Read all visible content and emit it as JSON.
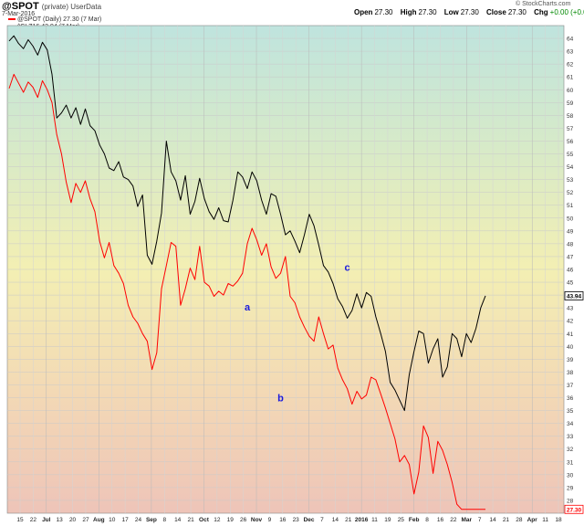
{
  "header": {
    "symbol": "@SPOT",
    "qualifier": "(private) UserData",
    "date": "7-Mar-2016",
    "open_label": "Open",
    "open": "27.30",
    "high_label": "High",
    "high": "27.30",
    "low_label": "Low",
    "low": "27.30",
    "close_label": "Close",
    "close": "27.30",
    "chg_label": "Chg",
    "chg": "+0.00 (+0.00%)",
    "brand": "© StockCharts.com"
  },
  "legend": {
    "primary": "@SPOT (Daily) 27.30 (7 Mar)",
    "secondary": "^CLZ16 43.94 (7 Mar)"
  },
  "chart_data": {
    "type": "line",
    "ylim": [
      27,
      65
    ],
    "y_ticks": [
      28,
      29,
      30,
      31,
      32,
      33,
      34,
      35,
      36,
      37,
      38,
      39,
      40,
      41,
      42,
      43,
      44,
      45,
      46,
      47,
      48,
      49,
      50,
      51,
      52,
      53,
      54,
      55,
      56,
      57,
      58,
      59,
      60,
      61,
      62,
      63,
      64
    ],
    "x_tick_labels": [
      "15",
      "22",
      "Jul",
      "13",
      "20",
      "27",
      "Aug",
      "10",
      "17",
      "24",
      "Sep",
      "8",
      "14",
      "21",
      "Oct",
      "12",
      "19",
      "26",
      "Nov",
      "9",
      "16",
      "23",
      "Dec",
      "7",
      "14",
      "21",
      "2016",
      "11",
      "19",
      "25",
      "Feb",
      "8",
      "16",
      "22",
      "Mar",
      "7",
      "14",
      "21",
      "28",
      "Apr",
      "11",
      "18"
    ],
    "x_tick_bold": [
      "Jul",
      "Aug",
      "Sep",
      "Oct",
      "Nov",
      "Dec",
      "2016",
      "Feb",
      "Mar",
      "Apr"
    ],
    "last_value_labels": {
      "primary": "27.30",
      "secondary": "43.94"
    },
    "annotations": [
      {
        "text": "a",
        "series": "secondary",
        "at_index": 50,
        "y": 42.8
      },
      {
        "text": "b",
        "series": "secondary",
        "at_index": 57,
        "y": 35.7
      },
      {
        "text": "c",
        "series": "secondary",
        "at_index": 71,
        "y": 45.9
      }
    ],
    "series": [
      {
        "name": "@SPOT",
        "color": "#ff0000",
        "values": [
          60.1,
          61.2,
          60.5,
          59.8,
          60.6,
          60.2,
          59.4,
          60.7,
          60.0,
          59.0,
          56.5,
          55.0,
          52.8,
          51.2,
          52.7,
          52.0,
          52.9,
          51.5,
          50.5,
          48.2,
          46.9,
          48.1,
          46.3,
          45.7,
          44.9,
          43.2,
          42.3,
          41.8,
          41.0,
          40.4,
          38.2,
          39.5,
          44.5,
          46.3,
          48.1,
          47.8,
          43.2,
          44.5,
          46.1,
          45.2,
          47.8,
          45.0,
          44.7,
          43.9,
          44.3,
          44.0,
          44.9,
          44.7,
          45.1,
          45.7,
          48.0,
          49.2,
          48.3,
          47.1,
          48.0,
          46.2,
          45.3,
          45.7,
          47.0,
          43.9,
          43.4,
          42.3,
          41.5,
          40.8,
          40.4,
          42.3,
          41.0,
          39.8,
          40.1,
          38.3,
          37.4,
          36.7,
          35.5,
          36.5,
          35.9,
          36.2,
          37.6,
          37.4,
          36.3,
          35.2,
          34.0,
          32.8,
          31.0,
          31.5,
          30.8,
          28.5,
          30.2,
          33.8,
          32.9,
          30.1,
          32.6,
          31.9,
          30.8,
          29.4,
          27.7,
          27.3,
          27.3,
          27.3,
          27.3,
          27.3,
          27.3
        ]
      },
      {
        "name": "^CLZ16",
        "color": "#000000",
        "values": [
          63.8,
          64.2,
          63.6,
          63.2,
          63.9,
          63.4,
          62.7,
          63.7,
          63.1,
          61.2,
          57.8,
          58.2,
          58.8,
          57.8,
          58.6,
          57.3,
          58.5,
          57.2,
          56.8,
          55.7,
          55.0,
          53.9,
          53.7,
          54.4,
          53.2,
          53.0,
          52.5,
          50.9,
          51.8,
          47.1,
          46.4,
          48.2,
          50.4,
          56.0,
          53.6,
          52.9,
          51.4,
          53.3,
          50.3,
          51.3,
          53.1,
          51.5,
          50.5,
          49.9,
          50.8,
          49.8,
          49.7,
          51.4,
          53.6,
          53.2,
          52.3,
          53.6,
          52.9,
          51.4,
          50.3,
          51.9,
          51.7,
          50.3,
          48.7,
          49.0,
          48.2,
          47.3,
          48.7,
          50.3,
          49.4,
          47.9,
          46.3,
          45.8,
          44.9,
          43.7,
          43.1,
          42.2,
          42.8,
          44.1,
          43.0,
          44.2,
          43.9,
          42.3,
          41.0,
          39.6,
          37.2,
          36.6,
          35.8,
          35.0,
          37.8,
          39.6,
          41.2,
          41.0,
          38.7,
          39.8,
          40.6,
          37.6,
          38.4,
          41.0,
          40.6,
          39.2,
          41.0,
          40.3,
          41.4,
          43.0,
          43.94
        ]
      }
    ]
  }
}
